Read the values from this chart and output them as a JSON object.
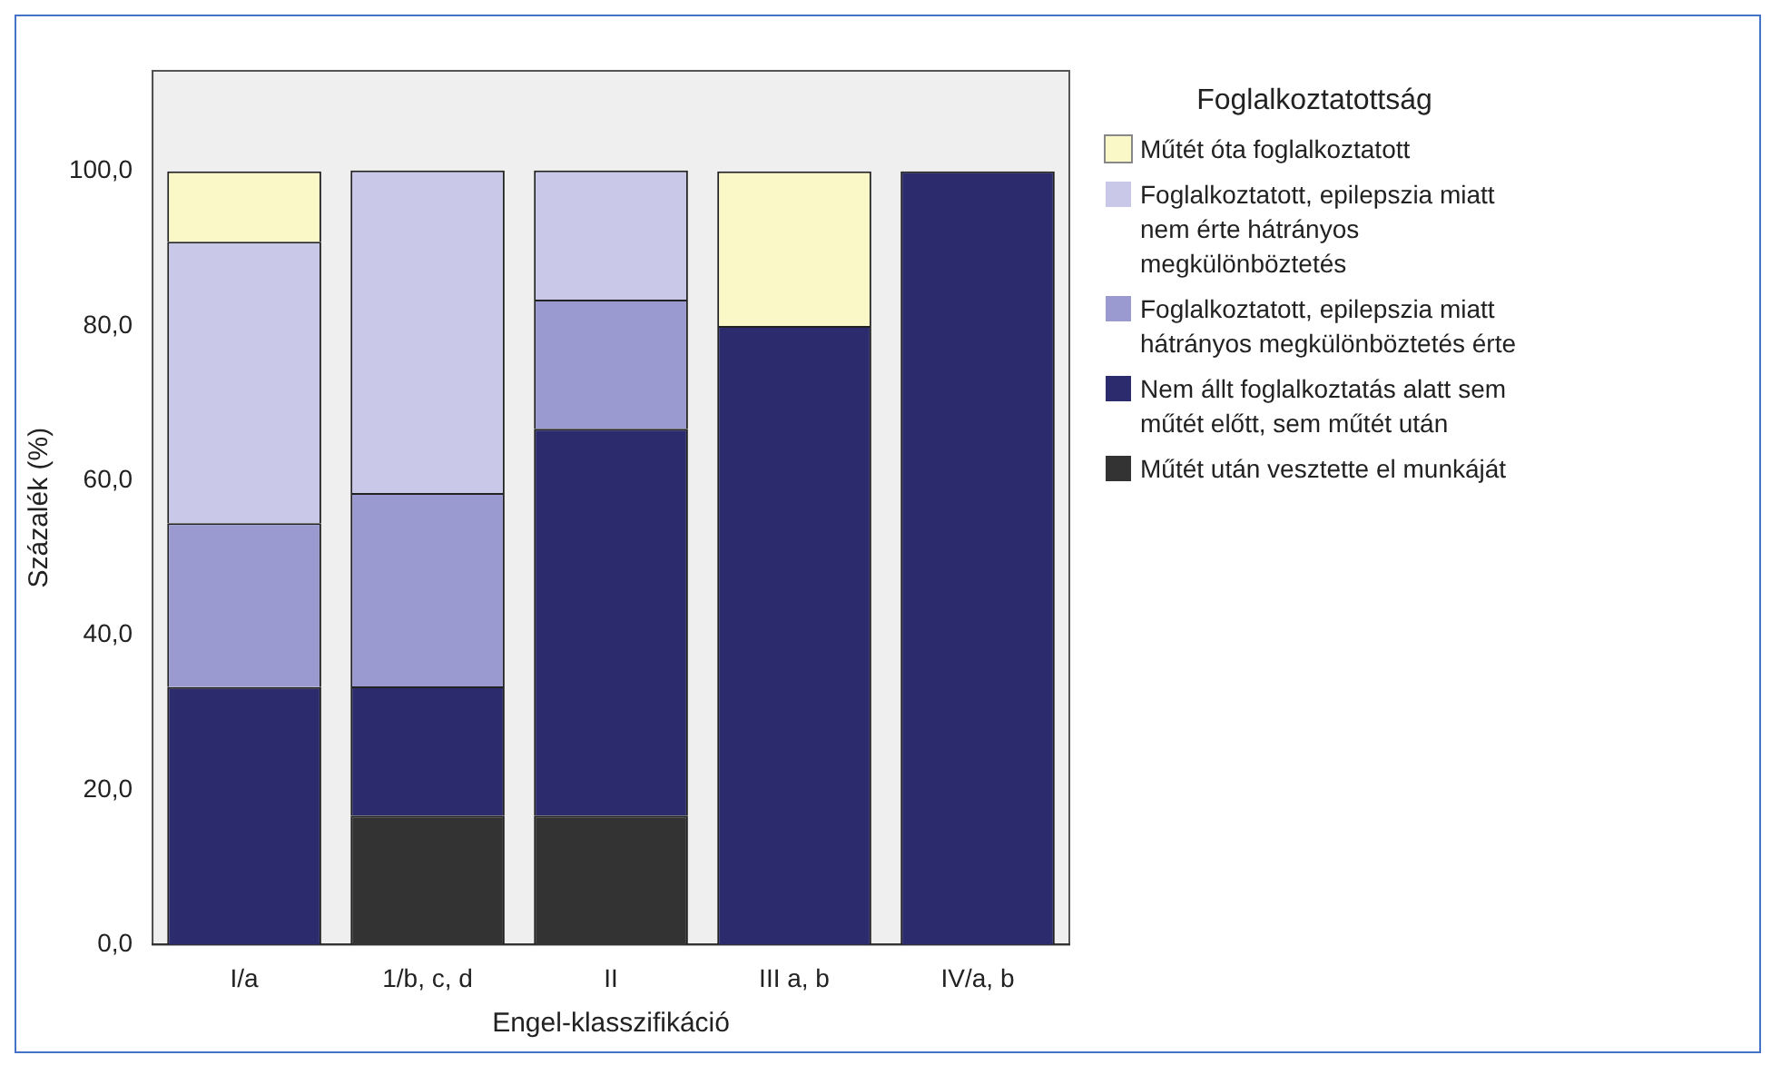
{
  "chart_data": {
    "type": "bar",
    "stacked": true,
    "xlabel": "Engel-klasszifikáció",
    "ylabel": "Százalék (%)",
    "legend_title": "Foglalkoztatottság",
    "legend": "right",
    "categories": [
      "I/a",
      "1/b, c, d",
      "II",
      "III a, b",
      "IV/a, b"
    ],
    "ylim": [
      0,
      113
    ],
    "yticks": [
      {
        "value": 0,
        "label": "0,0"
      },
      {
        "value": 20,
        "label": "20,0"
      },
      {
        "value": 40,
        "label": "40,0"
      },
      {
        "value": 60,
        "label": "60,0"
      },
      {
        "value": 80,
        "label": "80,0"
      },
      {
        "value": 100,
        "label": "100,0"
      }
    ],
    "series": [
      {
        "name": "Műtét után vesztette el munkáját",
        "color": "#333333",
        "values": [
          0,
          16.7,
          16.7,
          0,
          0
        ]
      },
      {
        "name": "Nem állt foglalkoztatás alatt sem műtét előtt, sem műtét után",
        "color": "#2b2b6e",
        "values": [
          33.3,
          16.7,
          50,
          80,
          100
        ]
      },
      {
        "name": "Foglalkoztatott, epilepszia miatt hátrányos megkülönböztetés érte",
        "color": "#9a9ad0",
        "values": [
          21.2,
          25,
          16.7,
          0,
          0
        ]
      },
      {
        "name": "Foglalkoztatott, epilepszia miatt nem érte hátrányos megkülönböztetés",
        "color": "#c9c8e8",
        "values": [
          36.4,
          41.7,
          16.7,
          0,
          0
        ]
      },
      {
        "name": "Műtét óta foglalkoztatott",
        "color": "#fbf8c8",
        "values": [
          9.1,
          0,
          0,
          20,
          0
        ]
      }
    ]
  }
}
